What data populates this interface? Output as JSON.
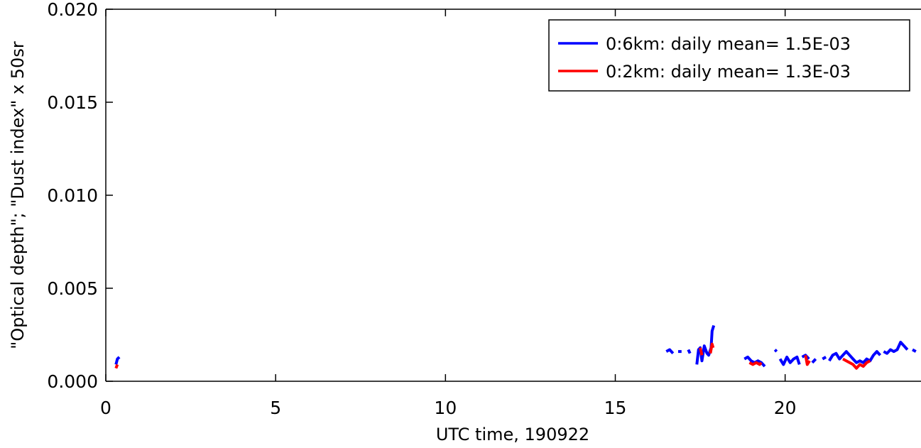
{
  "chart_data": {
    "type": "line",
    "title": "",
    "xlabel": "UTC time, 190922",
    "ylabel": "\"Optical depth\"; \"Dust index\" x 50sr",
    "xlim": [
      0,
      24
    ],
    "ylim": [
      0,
      0.02
    ],
    "x_ticks": [
      {
        "value": 0,
        "label": "0"
      },
      {
        "value": 5,
        "label": "5"
      },
      {
        "value": 10,
        "label": "10"
      },
      {
        "value": 15,
        "label": "15"
      },
      {
        "value": 20,
        "label": "20"
      }
    ],
    "y_ticks": [
      {
        "value": 0,
        "label": "0.000"
      },
      {
        "value": 0.005,
        "label": "0.005"
      },
      {
        "value": 0.01,
        "label": "0.010"
      },
      {
        "value": 0.015,
        "label": "0.015"
      },
      {
        "value": 0.02,
        "label": "0.020"
      }
    ],
    "grid": false,
    "legend_position": "top-right",
    "series": [
      {
        "name": "0:6km: daily mean= 1.5E-03",
        "color": "#0000ff",
        "segments": [
          [
            [
              0.3,
              0.0009
            ],
            [
              0.34,
              0.0012
            ],
            [
              0.4,
              0.0013
            ]
          ],
          [
            [
              16.5,
              0.0016
            ],
            [
              16.6,
              0.0017
            ],
            [
              16.7,
              0.0015
            ]
          ],
          [
            [
              16.85,
              0.0016
            ],
            [
              16.95,
              0.0016
            ]
          ],
          [
            [
              17.15,
              0.0017
            ],
            [
              17.2,
              0.0015
            ]
          ],
          [
            [
              17.4,
              0.0009
            ],
            [
              17.45,
              0.0017
            ],
            [
              17.5,
              0.0018
            ],
            [
              17.55,
              0.0011
            ],
            [
              17.62,
              0.0019
            ],
            [
              17.7,
              0.0015
            ],
            [
              17.75,
              0.0014
            ],
            [
              17.82,
              0.0018
            ],
            [
              17.85,
              0.0027
            ],
            [
              17.9,
              0.003
            ]
          ],
          [
            [
              18.8,
              0.0012
            ],
            [
              18.9,
              0.0013
            ],
            [
              19.0,
              0.0011
            ],
            [
              19.1,
              0.001
            ],
            [
              19.2,
              0.0011
            ],
            [
              19.3,
              0.001
            ],
            [
              19.4,
              0.0008
            ]
          ],
          [
            [
              19.7,
              0.0017
            ],
            [
              19.75,
              0.0016
            ]
          ],
          [
            [
              19.85,
              0.0012
            ],
            [
              19.95,
              0.0009
            ],
            [
              20.05,
              0.0013
            ],
            [
              20.15,
              0.001
            ],
            [
              20.25,
              0.0012
            ],
            [
              20.35,
              0.0013
            ],
            [
              20.42,
              0.0009
            ]
          ],
          [
            [
              20.5,
              0.0013
            ],
            [
              20.6,
              0.0014
            ],
            [
              20.7,
              0.0012
            ]
          ],
          [
            [
              20.8,
              0.001
            ],
            [
              20.9,
              0.0012
            ]
          ],
          [
            [
              21.1,
              0.0012
            ],
            [
              21.2,
              0.0013
            ]
          ],
          [
            [
              21.3,
              0.0011
            ],
            [
              21.4,
              0.0014
            ],
            [
              21.5,
              0.0015
            ],
            [
              21.6,
              0.0012
            ],
            [
              21.7,
              0.0014
            ],
            [
              21.8,
              0.0016
            ],
            [
              21.9,
              0.0014
            ],
            [
              22.0,
              0.0012
            ],
            [
              22.1,
              0.001
            ],
            [
              22.2,
              0.0011
            ],
            [
              22.3,
              0.001
            ],
            [
              22.4,
              0.0012
            ],
            [
              22.5,
              0.0011
            ],
            [
              22.6,
              0.0014
            ],
            [
              22.7,
              0.0016
            ],
            [
              22.8,
              0.0014
            ]
          ],
          [
            [
              22.9,
              0.0016
            ],
            [
              23.0,
              0.0015
            ],
            [
              23.1,
              0.0017
            ],
            [
              23.2,
              0.0016
            ],
            [
              23.3,
              0.0017
            ],
            [
              23.4,
              0.0021
            ],
            [
              23.5,
              0.0019
            ],
            [
              23.6,
              0.0017
            ]
          ],
          [
            [
              23.75,
              0.0017
            ],
            [
              23.85,
              0.0016
            ]
          ]
        ]
      },
      {
        "name": "0:2km: daily mean= 1.3E-03",
        "color": "#ff0000",
        "segments": [
          [
            [
              0.3,
              0.0007
            ],
            [
              0.34,
              0.0009
            ]
          ],
          [
            [
              17.5,
              0.0018
            ],
            [
              17.55,
              0.0014
            ]
          ],
          [
            [
              17.8,
              0.0015
            ],
            [
              17.85,
              0.002
            ],
            [
              17.88,
              0.0018
            ]
          ],
          [
            [
              18.95,
              0.001
            ],
            [
              19.05,
              0.0009
            ],
            [
              19.15,
              0.001
            ],
            [
              19.25,
              0.0009
            ],
            [
              19.3,
              0.001
            ]
          ],
          [
            [
              20.6,
              0.0014
            ],
            [
              20.65,
              0.0009
            ],
            [
              20.72,
              0.0011
            ]
          ],
          [
            [
              21.7,
              0.0012
            ],
            [
              21.8,
              0.0011
            ],
            [
              21.9,
              0.001
            ],
            [
              22.0,
              0.0009
            ],
            [
              22.1,
              0.0007
            ],
            [
              22.2,
              0.0009
            ],
            [
              22.3,
              0.0008
            ],
            [
              22.4,
              0.001
            ],
            [
              22.5,
              0.0011
            ]
          ]
        ]
      }
    ]
  }
}
